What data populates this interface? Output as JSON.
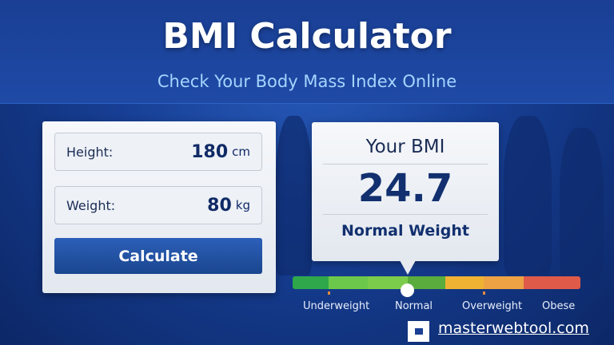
{
  "header": {
    "title": "BMI Calculator",
    "subtitle": "Check Your Body Mass Index Online"
  },
  "form": {
    "height": {
      "label": "Height:",
      "value": "180",
      "unit": "cm"
    },
    "weight": {
      "label": "Weight:",
      "value": "80",
      "unit": "kg"
    },
    "calculate_label": "Calculate"
  },
  "result": {
    "heading": "Your BMI",
    "value": "24.7",
    "category": "Normal Weight"
  },
  "scale": {
    "categories": [
      "Underweight",
      "Normal",
      "Overweight",
      "Obese"
    ],
    "colors": [
      "#2ea84a",
      "#6cc84a",
      "#7ccc4c",
      "#5aac3c",
      "#f0b232",
      "#eea244",
      "#e05a4a"
    ],
    "indicator_bmi": 24.7
  },
  "footer": {
    "link": "masterwebtool.com"
  }
}
